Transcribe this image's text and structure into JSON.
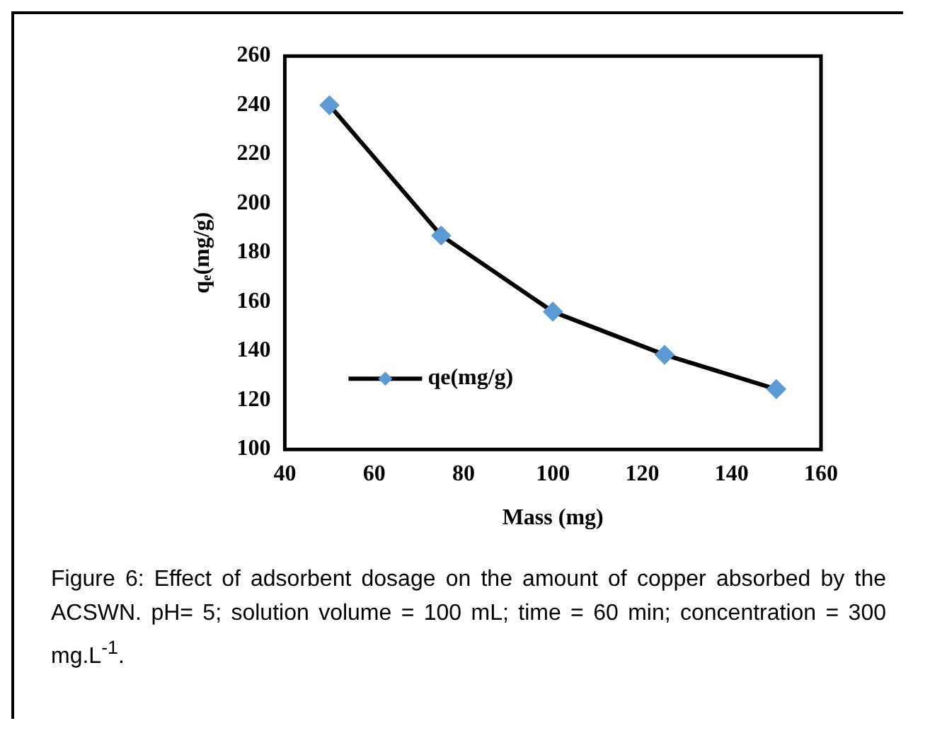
{
  "chart_data": {
    "type": "line",
    "xlabel": "Mass (mg)",
    "ylabel": "qₑ(mg/g)",
    "x": [
      50,
      75,
      100,
      125,
      150
    ],
    "series": [
      {
        "name": "qe(mg/g)",
        "color": "#5b9bd5",
        "values": [
          240,
          187,
          156,
          138.5,
          124.5
        ]
      }
    ],
    "xlim": [
      40,
      160
    ],
    "xticks": [
      40,
      60,
      80,
      100,
      120,
      140,
      160
    ],
    "ylim": [
      100,
      260
    ],
    "yticks": [
      100,
      120,
      140,
      160,
      180,
      200,
      220,
      240,
      260
    ],
    "grid": false,
    "legend": "bottom left",
    "marker": "diamond",
    "line_style": "solid",
    "annotations": [
      "Figure 6: Effect of adsorbent dosage on the amount of copper absorbed by the ACSWN. pH= 5; solution volume = 100 mL; time = 60 min; concentration = 300 mg.L$^{-1}$."
    ]
  }
}
